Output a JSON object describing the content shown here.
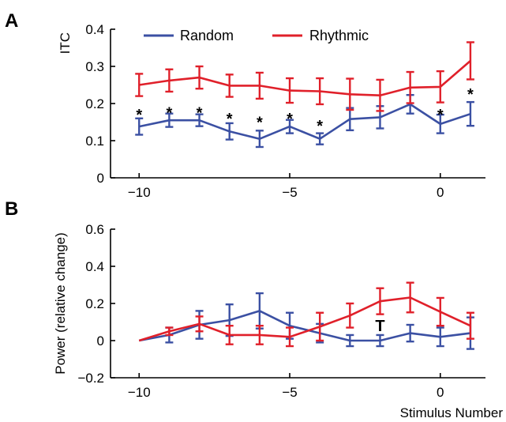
{
  "chart_data": [
    {
      "panel": "A",
      "type": "line",
      "xlabel": "",
      "ylabel": "ITC",
      "x": [
        -10,
        -9,
        -8,
        -7,
        -6,
        -5,
        -4,
        -3,
        -2,
        -1,
        0,
        1
      ],
      "xticks": [
        -10,
        -5,
        0
      ],
      "xlim": [
        -10.95,
        1.5
      ],
      "yticks": [
        0,
        0.1,
        0.2,
        0.3,
        0.4
      ],
      "ytick_labels": [
        "0",
        "0.1",
        "0.2",
        "0.3",
        "0.4"
      ],
      "ylim": [
        0,
        0.4
      ],
      "legend": "top-left",
      "series": [
        {
          "name": "Random",
          "color": "#3b50a3",
          "values": [
            0.138,
            0.155,
            0.155,
            0.125,
            0.105,
            0.138,
            0.105,
            0.158,
            0.163,
            0.198,
            0.145,
            0.172
          ],
          "errors": [
            0.022,
            0.018,
            0.016,
            0.022,
            0.022,
            0.018,
            0.015,
            0.03,
            0.03,
            0.025,
            0.025,
            0.032
          ]
        },
        {
          "name": "Rhythmic",
          "color": "#e0202a",
          "values": [
            0.25,
            0.262,
            0.27,
            0.248,
            0.248,
            0.235,
            0.233,
            0.225,
            0.222,
            0.243,
            0.245,
            0.315
          ],
          "errors": [
            0.03,
            0.03,
            0.03,
            0.03,
            0.035,
            0.033,
            0.035,
            0.042,
            0.042,
            0.042,
            0.042,
            0.05
          ]
        }
      ],
      "annotations": [
        {
          "x": -10,
          "y": 0.185,
          "text": "*"
        },
        {
          "x": -9,
          "y": 0.19,
          "text": "*"
        },
        {
          "x": -8,
          "y": 0.19,
          "text": "*"
        },
        {
          "x": -7,
          "y": 0.175,
          "text": "*"
        },
        {
          "x": -6,
          "y": 0.165,
          "text": "*"
        },
        {
          "x": -5,
          "y": 0.175,
          "text": "*"
        },
        {
          "x": -4,
          "y": 0.155,
          "text": "*"
        },
        {
          "x": 0,
          "y": 0.185,
          "text": "*"
        },
        {
          "x": 1,
          "y": 0.24,
          "text": "*"
        }
      ]
    },
    {
      "panel": "B",
      "type": "line",
      "xlabel": "Stimulus Number",
      "ylabel": "Power (relative change)",
      "x": [
        -10,
        -9,
        -8,
        -7,
        -6,
        -5,
        -4,
        -3,
        -2,
        -1,
        0,
        1
      ],
      "xticks": [
        -10,
        -5,
        0
      ],
      "xlim": [
        -10.95,
        1.5
      ],
      "yticks": [
        -0.2,
        0,
        0.2,
        0.4,
        0.6
      ],
      "ytick_labels": [
        "-0.2",
        "0",
        "0.2",
        "0.4",
        "0.6"
      ],
      "ylim": [
        -0.2,
        0.6
      ],
      "series": [
        {
          "name": "Random",
          "color": "#3b50a3",
          "values": [
            0,
            0.03,
            0.085,
            0.11,
            0.16,
            0.08,
            0.04,
            0,
            0,
            0.04,
            0.02,
            0.04
          ],
          "errors": [
            0,
            0.04,
            0.075,
            0.085,
            0.095,
            0.07,
            0.05,
            0.03,
            0.03,
            0.045,
            0.05,
            0.085
          ]
        },
        {
          "name": "Rhythmic",
          "color": "#e0202a",
          "values": [
            0,
            0.05,
            0.09,
            0.03,
            0.03,
            0.02,
            0.075,
            0.135,
            0.212,
            0.232,
            0.155,
            0.08
          ],
          "errors": [
            0,
            0.02,
            0.04,
            0.05,
            0.05,
            0.05,
            0.075,
            0.065,
            0.07,
            0.08,
            0.075,
            0.07
          ]
        }
      ],
      "annotations": [
        {
          "x": -2,
          "y": 0.085,
          "text": "T"
        }
      ]
    }
  ],
  "panel_letters": [
    "A",
    "B"
  ]
}
